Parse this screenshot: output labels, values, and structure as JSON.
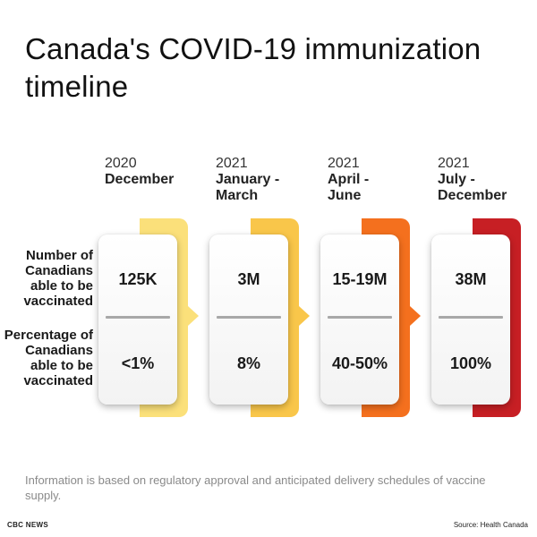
{
  "title": "Canada's COVID-19 immunization timeline",
  "row_labels": {
    "number": "Number of Canadians able to be vaccinated",
    "percentage": "Percentage of Canadians able to be vaccinated"
  },
  "periods": [
    {
      "year": "2020",
      "range": "December",
      "number": "125K",
      "percentage": "<1%",
      "color": "#fbe07a"
    },
    {
      "year": "2021",
      "range": "January -\nMarch",
      "number": "3M",
      "percentage": "8%",
      "color": "#f9c64a"
    },
    {
      "year": "2021",
      "range": "April -\nJune",
      "number": "15-19M",
      "percentage": "40-50%",
      "color": "#f4701e"
    },
    {
      "year": "2021",
      "range": "July -\nDecember",
      "number": "38M",
      "percentage": "100%",
      "color": "#c71f24"
    }
  ],
  "note": "Information is based on regulatory approval and anticipated delivery schedules of vaccine supply.",
  "footer": {
    "left": "CBC NEWS",
    "right": "Source: Health Canada"
  }
}
